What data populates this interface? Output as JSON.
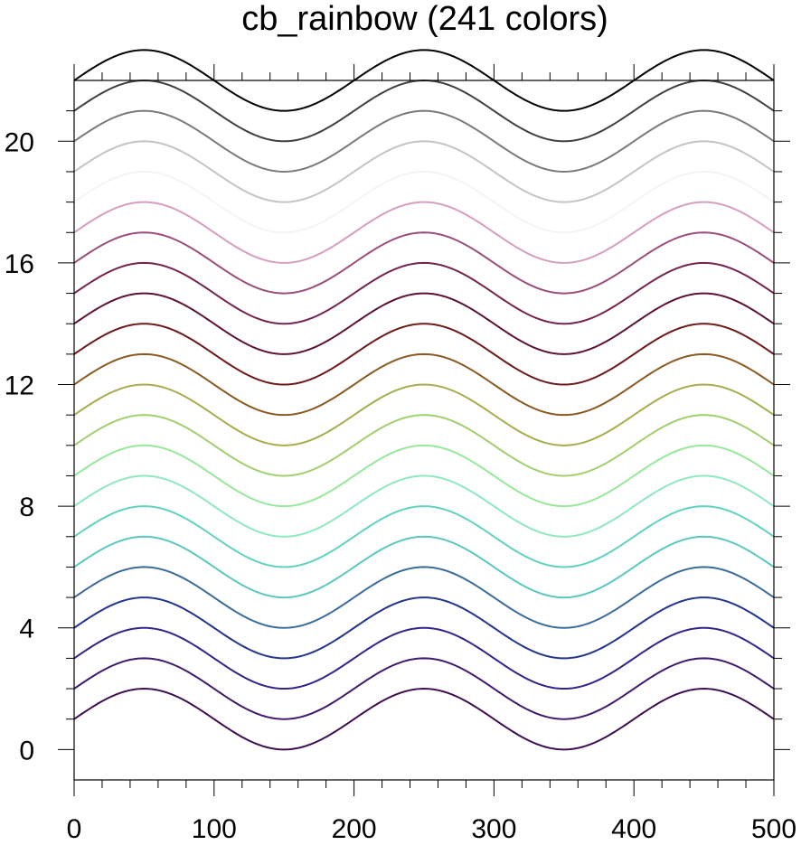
{
  "chart_data": {
    "type": "line",
    "title": "cb_rainbow (241 colors)",
    "xlabel": "",
    "ylabel": "",
    "xlim": [
      0,
      500
    ],
    "ylim": [
      -1,
      22
    ],
    "x_ticks": [
      0,
      100,
      200,
      300,
      400,
      500
    ],
    "x_tick_labels": [
      "0",
      "100",
      "200",
      "300",
      "400",
      "500"
    ],
    "y_ticks": [
      0,
      4,
      8,
      12,
      16,
      20
    ],
    "y_tick_labels": [
      "0",
      "4",
      "8",
      "12",
      "16",
      "20"
    ],
    "grid": false,
    "legend": "none",
    "curve": "y = offset + sin(2*pi*(x - 0)/200), amplitude 1, period 200",
    "amplitude": 1,
    "period": 200,
    "series": [
      {
        "offset": 1,
        "color": "#3d0f4f"
      },
      {
        "offset": 2,
        "color": "#401a6b"
      },
      {
        "offset": 3,
        "color": "#352389"
      },
      {
        "offset": 4,
        "color": "#23358d"
      },
      {
        "offset": 5,
        "color": "#3b6b9b"
      },
      {
        "offset": 6,
        "color": "#5ac8c0"
      },
      {
        "offset": 7,
        "color": "#61d1c0"
      },
      {
        "offset": 8,
        "color": "#8ee8c0"
      },
      {
        "offset": 9,
        "color": "#97e89a"
      },
      {
        "offset": 10,
        "color": "#a1cf6e"
      },
      {
        "offset": 11,
        "color": "#a6ad4e"
      },
      {
        "offset": 12,
        "color": "#8a5a22"
      },
      {
        "offset": 13,
        "color": "#6d1a1a"
      },
      {
        "offset": 14,
        "color": "#5c1236"
      },
      {
        "offset": 15,
        "color": "#74234f"
      },
      {
        "offset": 16,
        "color": "#9a4e7a"
      },
      {
        "offset": 17,
        "color": "#d69ec0"
      },
      {
        "offset": 18,
        "color": "#f4f4f4"
      },
      {
        "offset": 19,
        "color": "#c4c4c4"
      },
      {
        "offset": 20,
        "color": "#7a7a7a"
      },
      {
        "offset": 21,
        "color": "#404040"
      },
      {
        "offset": 22,
        "color": "#000000"
      }
    ]
  }
}
